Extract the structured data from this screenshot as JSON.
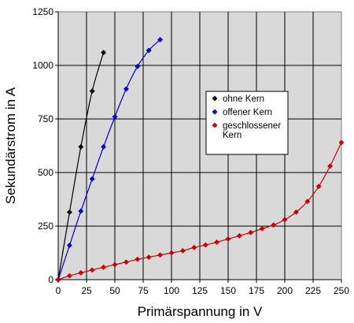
{
  "chart_data": {
    "type": "line",
    "xlabel": "Primärspannung in V",
    "ylabel": "Sekundärstrom in A",
    "xlim": [
      0,
      250
    ],
    "ylim": [
      0,
      1250
    ],
    "xticks": [
      "0",
      "25",
      "50",
      "75",
      "100",
      "125",
      "150",
      "175",
      "200",
      "225",
      "250"
    ],
    "yticks": [
      "0",
      "250",
      "500",
      "750",
      "1000",
      "1250"
    ],
    "grid": true,
    "legend_position": "center-right",
    "plot_background": "#d9d9d9",
    "series": [
      {
        "name": "ohne Kern",
        "color": "#000000",
        "x": [
          0,
          10,
          20,
          30,
          40
        ],
        "y": [
          0,
          315,
          620,
          880,
          1060
        ]
      },
      {
        "name": "offener Kern",
        "color": "#0000cc",
        "x": [
          0,
          10,
          20,
          30,
          40,
          50,
          60,
          70,
          80,
          90
        ],
        "y": [
          0,
          160,
          320,
          470,
          620,
          760,
          890,
          995,
          1070,
          1120
        ]
      },
      {
        "name": "geschlossener Kern",
        "color": "#cc0000",
        "x": [
          0,
          10,
          20,
          30,
          40,
          50,
          60,
          70,
          80,
          90,
          100,
          110,
          120,
          130,
          140,
          150,
          160,
          170,
          180,
          190,
          200,
          210,
          220,
          230,
          240,
          250
        ],
        "y": [
          0,
          18,
          32,
          45,
          58,
          70,
          82,
          95,
          105,
          115,
          125,
          135,
          150,
          162,
          175,
          190,
          205,
          220,
          238,
          255,
          280,
          315,
          365,
          435,
          530,
          640
        ]
      }
    ],
    "legend_lines": [
      [
        "ohne Kern"
      ],
      [
        "offener Kern"
      ],
      [
        "geschlossener",
        "Kern"
      ]
    ]
  }
}
